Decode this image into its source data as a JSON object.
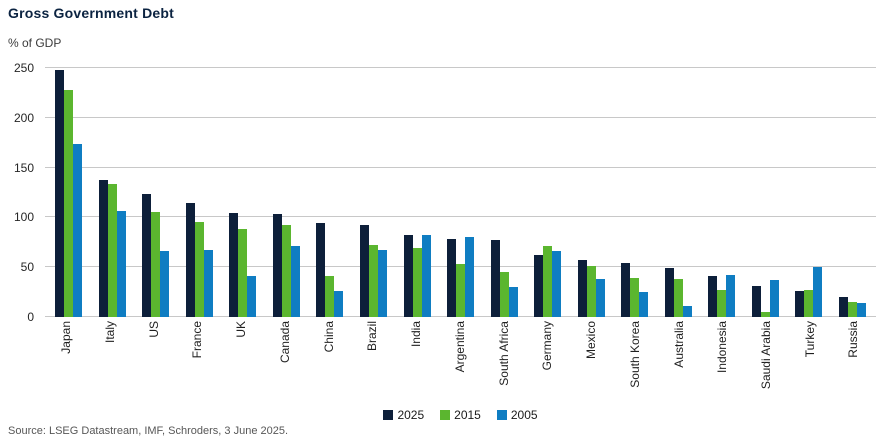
{
  "chart_data": {
    "type": "bar",
    "title": "Gross Government Debt",
    "ylabel": "% of GDP",
    "ylim": [
      0,
      250
    ],
    "yticks": [
      0,
      50,
      100,
      150,
      200,
      250
    ],
    "grid": "horizontal",
    "legend_position": "bottom-center",
    "x_label_rotation": "vertical-bottom-to-top",
    "categories": [
      "Japan",
      "Italy",
      "US",
      "France",
      "UK",
      "Canada",
      "China",
      "Brazil",
      "India",
      "Argentina",
      "South Africa",
      "Germany",
      "Mexico",
      "South Korea",
      "Australia",
      "Indonesia",
      "Saudi Arabia",
      "Turkey",
      "Russia"
    ],
    "series": [
      {
        "name": "2025",
        "color": "#0D1F3A",
        "values": [
          248,
          138,
          124,
          114,
          104,
          103,
          94,
          92,
          82,
          78,
          77,
          62,
          57,
          54,
          49,
          41,
          31,
          26,
          20
        ]
      },
      {
        "name": "2015",
        "color": "#5BB62F",
        "values": [
          228,
          134,
          105,
          95,
          88,
          92,
          41,
          72,
          69,
          53,
          45,
          71,
          51,
          39,
          38,
          27,
          5,
          27,
          15
        ]
      },
      {
        "name": "2005",
        "color": "#0F7DC2",
        "values": [
          174,
          106,
          66,
          67,
          41,
          71,
          26,
          67,
          82,
          80,
          30,
          66,
          38,
          25,
          11,
          42,
          37,
          50,
          14
        ]
      }
    ]
  },
  "source": "Source: LSEG Datastream, IMF, Schroders, 3 June 2025.",
  "colors": {
    "title": "#0B2341",
    "unit_label": "#3C3C3C",
    "grid": "#C8C8C8",
    "tick_label": "#262626",
    "x_label": "#1F1F1F",
    "legend_text": "#1A1A1A",
    "source_text": "#575757"
  }
}
